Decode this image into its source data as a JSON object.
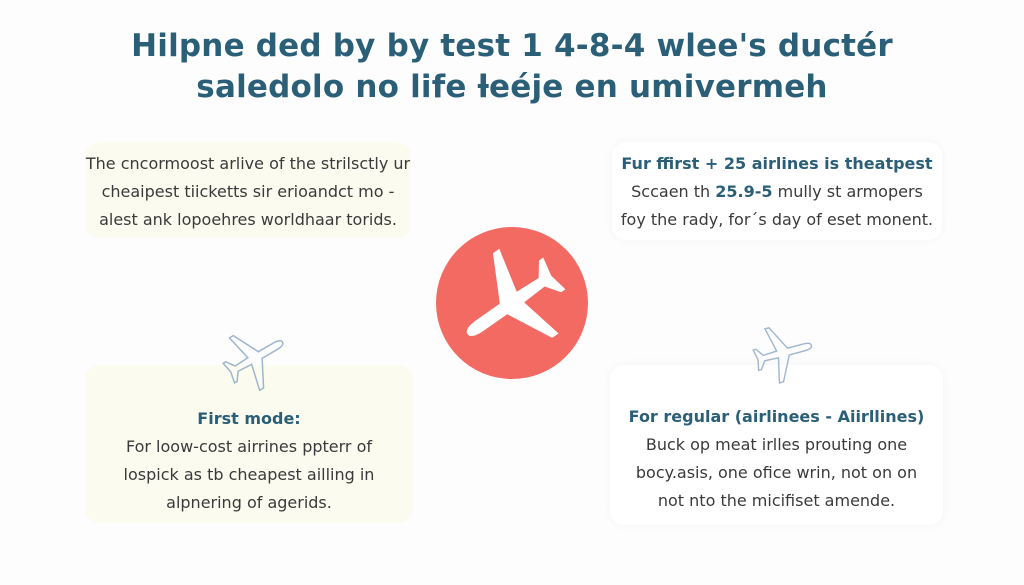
{
  "title": {
    "line1": "Hilpne ded by by test 1 4-8-4 wlee's ductér",
    "line2": "saledolo no life ƚeéje en umivermeh"
  },
  "cards": {
    "top_left": {
      "lines": [
        "The cncormoost arlive of the strilsctly ur",
        "cheaipest tiicketts sir erioandct mo -",
        "alest ank lopoehres worldhaar torids."
      ]
    },
    "top_right": {
      "heading": "Fur ffirst + 25 airlines is theatpest",
      "line2_pre": "Sccaen th ",
      "line2_hl": "25.9-5",
      "line2_post": " mully st armopers",
      "line3": "foy the rady, for´s day of eset monent."
    },
    "bottom_left": {
      "heading": "First mode:",
      "lines": [
        "For loow-cost airrines ppterr of",
        "lospick as tb cheapest ailling in",
        "alpnering of agerids."
      ]
    },
    "bottom_right": {
      "heading": "For regular (airlinees - Aiirllines)",
      "lines": [
        "Buck op meat irlles prouting one",
        "bocy.asis, one ofice wrin, not on on",
        "not nto the micifiset amende."
      ]
    }
  },
  "colors": {
    "accent": "#2b5f78",
    "hub": "#f26a62",
    "card_cream": "#fcfbef",
    "outline_plane": "#9fb6cf"
  },
  "icons": {
    "hub": "airplane-icon",
    "small": "airplane-outline-icon"
  }
}
